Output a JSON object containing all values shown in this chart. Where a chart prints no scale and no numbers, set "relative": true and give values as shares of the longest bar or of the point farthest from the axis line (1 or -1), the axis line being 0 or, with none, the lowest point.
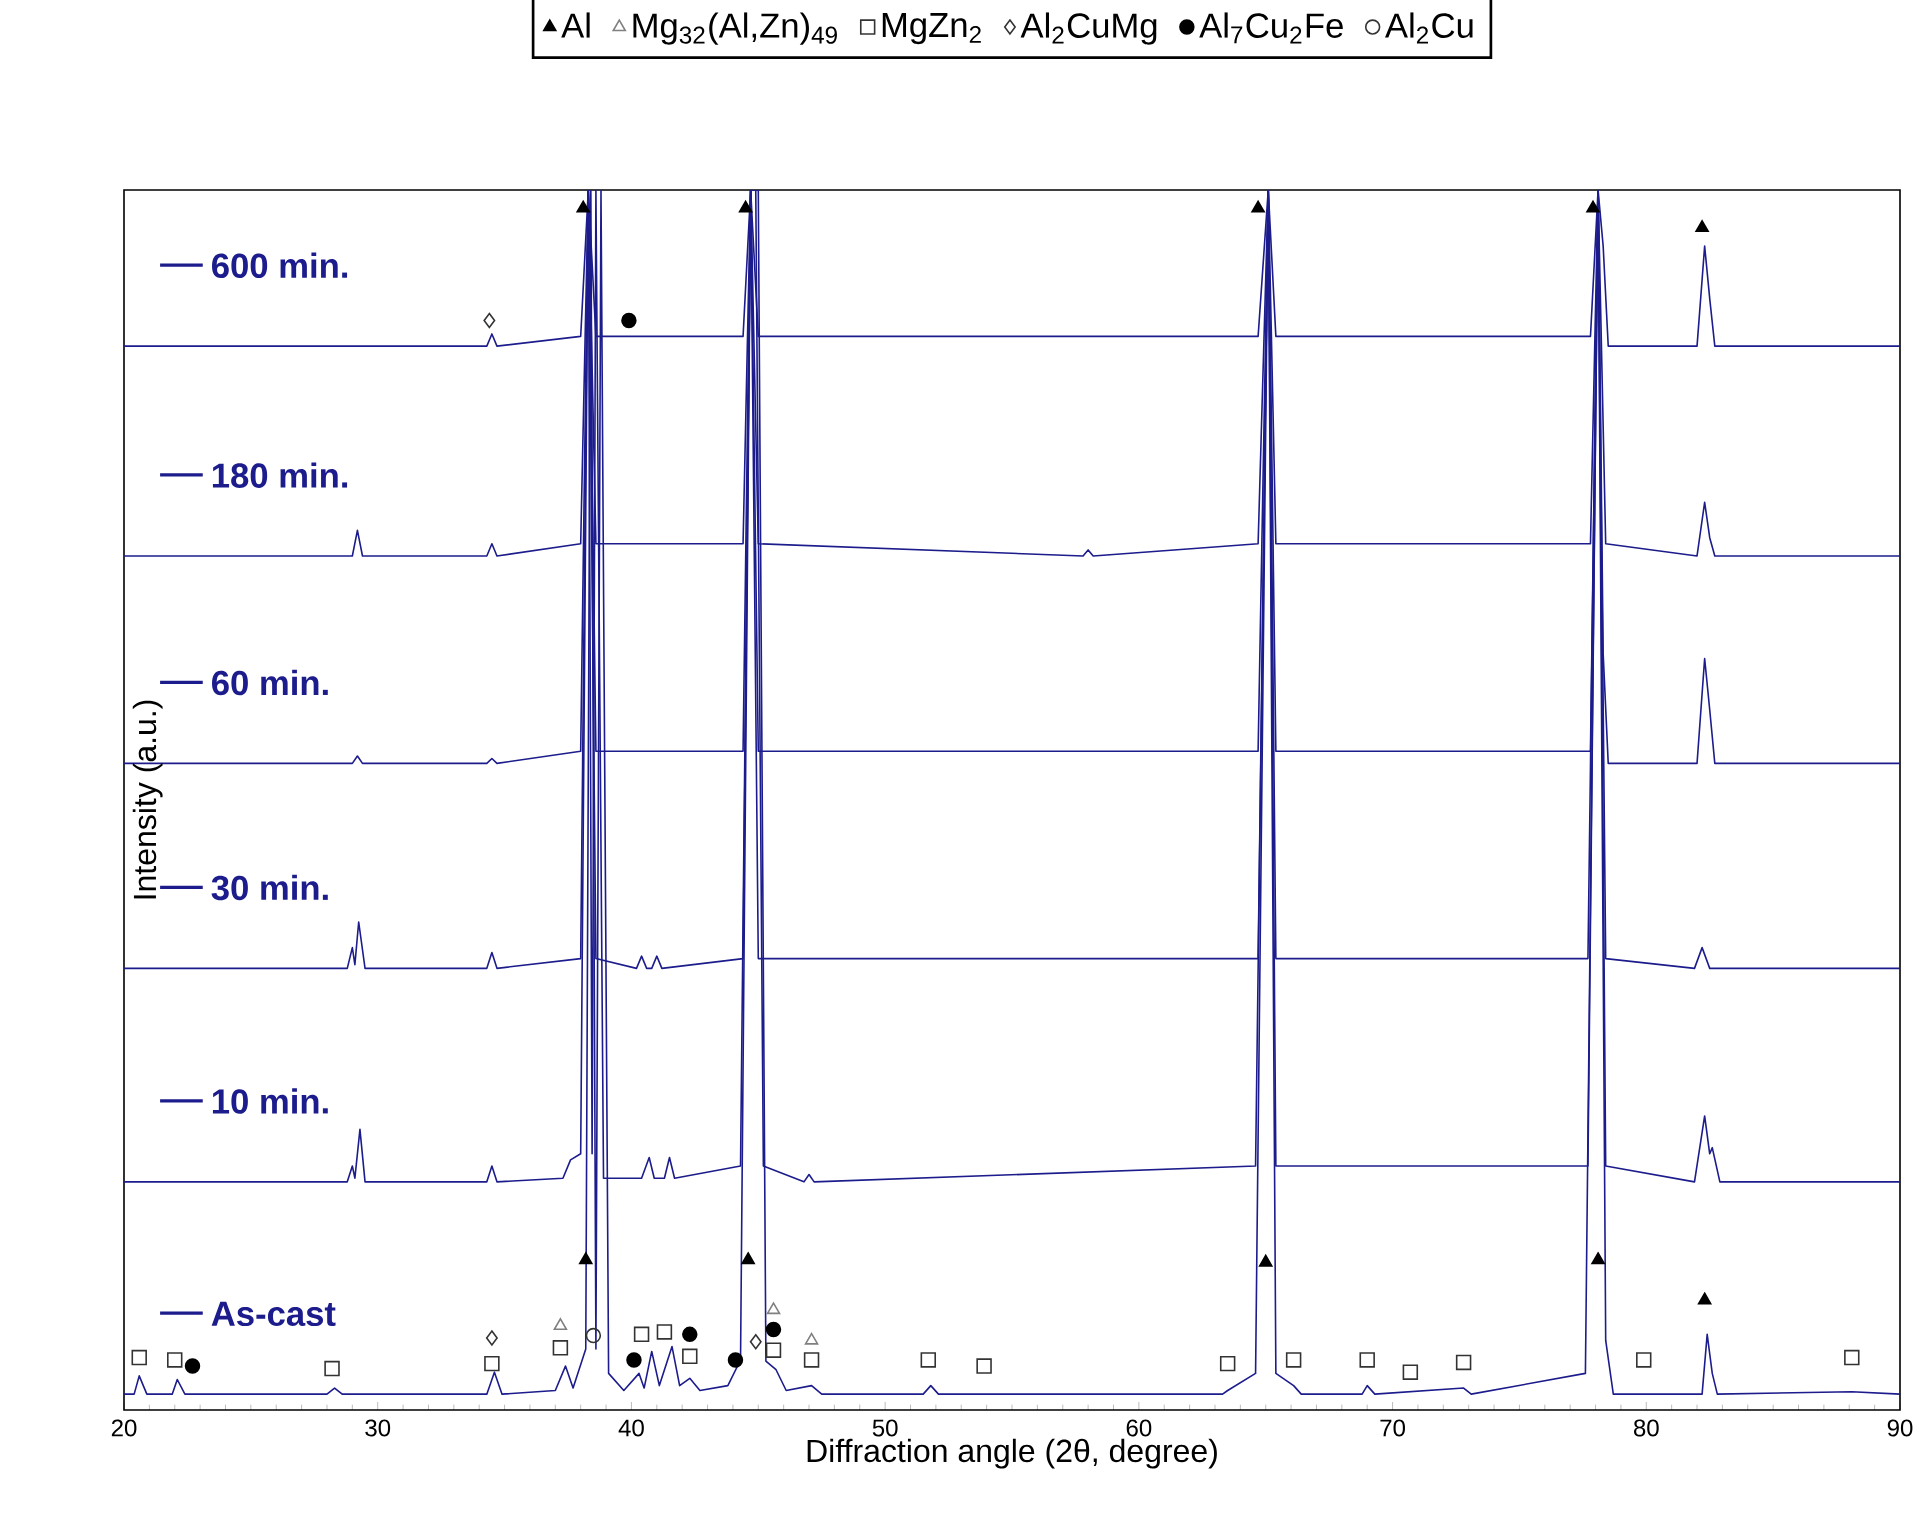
{
  "chart_data": {
    "type": "line",
    "relative": true,
    "xlabel": "Diffraction angle (2θ, degree)",
    "ylabel": "Intensity (a.u.)",
    "xlim": [
      20,
      90
    ],
    "xticks": [
      20,
      30,
      40,
      50,
      60,
      70,
      80,
      90
    ],
    "tick_labels": "x",
    "legend": "top",
    "grid": false,
    "line_style": "solid",
    "series": [
      {
        "name": "As-cast",
        "color": "#1c1c8c",
        "x": [
          20,
          20.4,
          20.6,
          20.9,
          21.9,
          22.1,
          22.4,
          28.0,
          28.3,
          28.6,
          34.3,
          34.6,
          34.9,
          37.0,
          37.4,
          37.7,
          38.2,
          38.4,
          38.6,
          38.8,
          39.1,
          39.7,
          40.3,
          40.5,
          40.8,
          41.1,
          41.6,
          41.9,
          42.3,
          42.7,
          43.8,
          44.3,
          44.7,
          45.0,
          45.3,
          45.7,
          46.1,
          47.1,
          47.5,
          51.5,
          51.8,
          52.1,
          63.3,
          63.5,
          64.6,
          65.1,
          65.4,
          66.1,
          66.4,
          68.8,
          69.0,
          69.3,
          72.8,
          73.1,
          77.6,
          78.1,
          78.4,
          78.7,
          82.2,
          82.4,
          82.6,
          82.8,
          88.1,
          90
        ],
        "values": [
          0.013,
          0.013,
          0.028,
          0.013,
          0.013,
          0.025,
          0.013,
          0.013,
          0.018,
          0.013,
          0.013,
          0.031,
          0.013,
          0.016,
          0.036,
          0.018,
          0.05,
          1,
          0.05,
          1,
          0.03,
          0.016,
          0.03,
          0.018,
          0.048,
          0.02,
          0.052,
          0.02,
          0.026,
          0.016,
          0.02,
          0.041,
          1,
          1,
          0.04,
          0.033,
          0.016,
          0.02,
          0.013,
          0.013,
          0.02,
          0.013,
          0.013,
          0.016,
          0.03,
          1,
          0.03,
          0.02,
          0.013,
          0.013,
          0.02,
          0.013,
          0.018,
          0.013,
          0.03,
          1,
          0.057,
          0.013,
          0.013,
          0.062,
          0.03,
          0.013,
          0.015,
          0.013
        ]
      },
      {
        "name": "10 min.",
        "color": "#1c1c8c",
        "x": [
          20,
          28.8,
          29.0,
          29.1,
          29.3,
          29.5,
          34.3,
          34.5,
          34.7,
          37.3,
          37.6,
          38.0,
          38.3,
          38.45,
          38.6,
          38.9,
          40.4,
          40.7,
          40.9,
          41.3,
          41.5,
          41.7,
          44.3,
          44.7,
          44.9,
          45.2,
          46.8,
          47.0,
          47.2,
          64.6,
          65.1,
          65.4,
          77.7,
          78.1,
          78.4,
          81.9,
          82.3,
          82.5,
          82.6,
          82.9,
          90
        ],
        "values": [
          0.187,
          0.187,
          0.2,
          0.19,
          0.23,
          0.187,
          0.187,
          0.2,
          0.187,
          0.19,
          0.205,
          0.21,
          1,
          0.21,
          1,
          0.19,
          0.19,
          0.207,
          0.19,
          0.19,
          0.207,
          0.19,
          0.2,
          1,
          1,
          0.2,
          0.187,
          0.193,
          0.187,
          0.2,
          1,
          0.2,
          0.2,
          1,
          0.2,
          0.187,
          0.241,
          0.21,
          0.215,
          0.187,
          0.187
        ]
      },
      {
        "name": "30 min.",
        "color": "#1c1c8c",
        "x": [
          20,
          28.8,
          29.0,
          29.1,
          29.25,
          29.5,
          34.3,
          34.5,
          34.7,
          38.0,
          38.3,
          38.6,
          40.2,
          40.4,
          40.6,
          40.8,
          41.0,
          41.2,
          44.4,
          44.7,
          45.0,
          64.7,
          65.1,
          65.4,
          77.7,
          78.1,
          78.4,
          81.9,
          82.2,
          82.5,
          90
        ],
        "values": [
          0.362,
          0.362,
          0.379,
          0.365,
          0.4,
          0.362,
          0.362,
          0.375,
          0.362,
          0.37,
          1,
          0.37,
          0.362,
          0.372,
          0.362,
          0.362,
          0.372,
          0.362,
          0.37,
          1,
          0.37,
          0.37,
          1,
          0.37,
          0.37,
          1,
          0.37,
          0.362,
          0.379,
          0.362,
          0.362
        ]
      },
      {
        "name": "60 min.",
        "color": "#1c1c8c",
        "x": [
          20,
          29.0,
          29.2,
          29.4,
          34.3,
          34.5,
          34.7,
          38.0,
          38.3,
          38.6,
          44.4,
          44.7,
          45.0,
          64.7,
          65.1,
          65.4,
          77.8,
          78.1,
          78.3,
          78.5,
          82.0,
          82.3,
          82.5,
          82.7,
          90
        ],
        "values": [
          0.53,
          0.53,
          0.536,
          0.53,
          0.53,
          0.534,
          0.53,
          0.54,
          1,
          0.54,
          0.54,
          1,
          0.54,
          0.54,
          1,
          0.54,
          0.54,
          1,
          0.62,
          0.53,
          0.53,
          0.616,
          0.574,
          0.53,
          0.53
        ]
      },
      {
        "name": "180 min.",
        "color": "#1c1c8c",
        "x": [
          20,
          29.0,
          29.2,
          29.4,
          34.3,
          34.5,
          34.7,
          38.0,
          38.3,
          38.6,
          44.4,
          44.7,
          45.0,
          57.8,
          58.0,
          58.2,
          64.7,
          65.1,
          65.4,
          77.8,
          78.1,
          78.4,
          82.0,
          82.3,
          82.5,
          82.7,
          90
        ],
        "values": [
          0.7,
          0.7,
          0.721,
          0.7,
          0.7,
          0.71,
          0.7,
          0.71,
          1,
          0.71,
          0.71,
          1,
          0.71,
          0.7,
          0.705,
          0.7,
          0.71,
          1,
          0.71,
          0.71,
          1,
          0.71,
          0.7,
          0.744,
          0.715,
          0.7,
          0.7
        ]
      },
      {
        "name": "600 min.",
        "color": "#1c1c8c",
        "x": [
          20,
          34.3,
          34.5,
          34.7,
          38.0,
          38.3,
          38.6,
          44.4,
          44.7,
          45.0,
          64.7,
          65.1,
          65.4,
          77.8,
          78.1,
          78.3,
          78.5,
          82.0,
          82.3,
          82.5,
          82.7,
          90
        ],
        "values": [
          0.872,
          0.872,
          0.882,
          0.872,
          0.88,
          1,
          0.88,
          0.88,
          1,
          0.88,
          0.88,
          1,
          0.88,
          0.88,
          1,
          0.954,
          0.872,
          0.872,
          0.954,
          0.911,
          0.872,
          0.872
        ]
      },
      {
        "name": "Al",
        "type": "scatter",
        "marker": "triangle",
        "color": "#000000",
        "x": [
          38.2,
          44.6,
          65.0,
          78.1,
          82.3,
          38.1,
          44.5,
          64.7,
          77.9,
          82.2
        ],
        "values": [
          0.123,
          0.123,
          0.121,
          0.123,
          0.09,
          0.985,
          0.985,
          0.985,
          0.985,
          0.969
        ]
      },
      {
        "name": "Mg$_{32}$(Al,Zn)$_{49}$",
        "type": "scatter",
        "marker": "triangle",
        "color": "#808080",
        "x": [
          37.2,
          45.6,
          47.1
        ],
        "values": [
          0.069,
          0.082,
          0.057
        ]
      },
      {
        "name": "MgZn$_{2}$",
        "type": "scatter",
        "marker": "square",
        "color": "#333333",
        "x": [
          20.6,
          22.0,
          28.2,
          34.5,
          37.2,
          40.4,
          41.3,
          42.3,
          45.6,
          47.1,
          51.7,
          53.9,
          63.5,
          66.1,
          69.0,
          70.7,
          72.8,
          79.9,
          88.1
        ],
        "values": [
          0.043,
          0.041,
          0.034,
          0.038,
          0.051,
          0.062,
          0.064,
          0.044,
          0.049,
          0.041,
          0.041,
          0.036,
          0.038,
          0.041,
          0.041,
          0.031,
          0.039,
          0.041,
          0.043
        ]
      },
      {
        "name": "Al$_{2}$CuMg",
        "type": "scatter",
        "marker": "diamond",
        "color": "#333333",
        "x": [
          34.5,
          44.9,
          34.4
        ],
        "values": [
          0.059,
          0.056,
          0.893
        ]
      },
      {
        "name": "Al$_{7}$Cu$_{2}$Fe",
        "type": "scatter",
        "marker": "circle",
        "color": "#000000",
        "x": [
          22.7,
          40.1,
          42.3,
          44.1,
          45.6,
          39.9
        ],
        "values": [
          0.036,
          0.041,
          0.062,
          0.041,
          0.066,
          0.893
        ]
      },
      {
        "name": "Al$_{2}$Cu",
        "type": "scatter",
        "marker": "circle",
        "color": "#333333",
        "x": [
          38.5
        ],
        "values": [
          0.061
        ]
      }
    ]
  }
}
